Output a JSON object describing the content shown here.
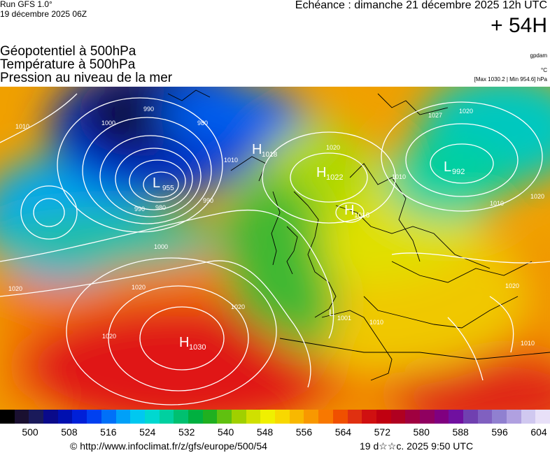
{
  "header": {
    "run": "Run GFS 1.0°",
    "run_date": "19 décembre 2025 06Z",
    "echeance": "Echéance : dimanche 21 décembre 2025 12h UTC",
    "lead_time": "+ 54H"
  },
  "titles": [
    "Géopotentiel à 500hPa",
    "Température à 500hPa",
    "Pression au niveau de la mer"
  ],
  "units": {
    "geopotential": "gpdam",
    "temperature": "°C",
    "pressure_range": "[Max 1030.2 | Min 954.6] hPa"
  },
  "map": {
    "centers": [
      {
        "type": "L",
        "value": "955"
      },
      {
        "type": "H",
        "value": "1018"
      },
      {
        "type": "H",
        "value": "1022"
      },
      {
        "type": "H",
        "value": "1016"
      },
      {
        "type": "L",
        "value": "992"
      },
      {
        "type": "H",
        "value": "1030"
      },
      {
        "type": "L",
        "value": "1001"
      }
    ],
    "isobar_labels": [
      "1000",
      "990",
      "980",
      "1010",
      "980",
      "990",
      "1000",
      "1010",
      "1020",
      "1020",
      "1010",
      "1020",
      "1020",
      "1020",
      "1027",
      "1020",
      "1010",
      "1010",
      "990",
      "1020",
      "1020",
      "1010"
    ],
    "colors": {
      "low": "#0a0a30",
      "high": "#e01010",
      "isobar": "#ffffff",
      "coast": "#000000"
    }
  },
  "colorbar": {
    "ticks": [
      "500",
      "508",
      "516",
      "524",
      "532",
      "540",
      "548",
      "556",
      "564",
      "572",
      "580",
      "588",
      "596",
      "604"
    ],
    "colors": [
      "#000000",
      "#1a1030",
      "#1a1a5a",
      "#0a0a8a",
      "#0010b0",
      "#0020d8",
      "#0040f0",
      "#0070f8",
      "#00a0f8",
      "#00c8f0",
      "#00d8d0",
      "#00d0a0",
      "#00c070",
      "#00b040",
      "#20b020",
      "#60c010",
      "#a0d000",
      "#d0e000",
      "#f0f000",
      "#f8d800",
      "#f8b800",
      "#f89800",
      "#f87800",
      "#f05000",
      "#e03010",
      "#d01010",
      "#c00010",
      "#b00020",
      "#a00040",
      "#900060",
      "#800080",
      "#7010a0",
      "#7040b0",
      "#8060c0",
      "#9080d0",
      "#b0a0e0",
      "#d0c8f0",
      "#e8e0f8"
    ]
  },
  "footer": {
    "url": "© http://www.infoclimat.fr/z/gfs/europe/500/54",
    "generated": "19 d☆☆c. 2025  9:50 UTC"
  }
}
